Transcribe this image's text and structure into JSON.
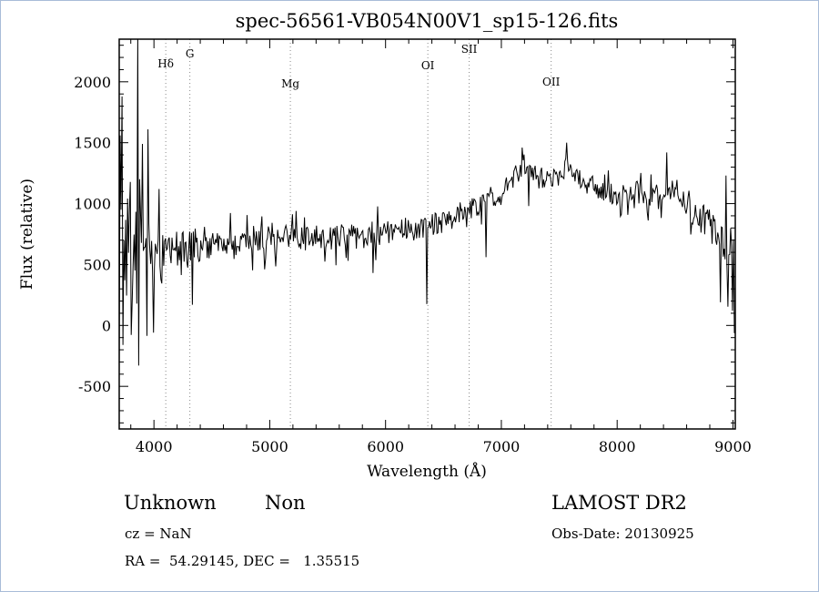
{
  "title": "spec-56561-VB054N00V1_sp15-126.fits",
  "chart_data": {
    "type": "line",
    "title": "spec-56561-VB054N00V1_sp15-126.fits",
    "xlabel": "Wavelength (Å)",
    "ylabel": "Flux (relative)",
    "xlim": [
      3700,
      9020
    ],
    "ylim": [
      -850,
      2350
    ],
    "x_ticks": [
      4000,
      5000,
      6000,
      7000,
      8000,
      9000
    ],
    "y_ticks": [
      -500,
      0,
      500,
      1000,
      1500,
      2000
    ],
    "x_minor_step": 200,
    "y_minor_step": 100,
    "grid": false,
    "legend": "none",
    "line_color": "#000000",
    "dotted_line_color": "#8a8a8a",
    "spectral_lines": [
      {
        "label": "Hδ",
        "wavelength": 4102,
        "label_y": 73
      },
      {
        "label": "G",
        "wavelength": 4310,
        "label_y": 62
      },
      {
        "label": "Mg",
        "wavelength": 5178,
        "label_y": 95
      },
      {
        "label": "OI",
        "wavelength": 6365,
        "label_y": 75
      },
      {
        "label": "SII",
        "wavelength": 6722,
        "label_y": 57
      },
      {
        "label": "OII",
        "wavelength": 7430,
        "label_y": 93
      }
    ],
    "continuum": [
      [
        3700,
        520
      ],
      [
        3720,
        560
      ],
      [
        3760,
        540
      ],
      [
        3800,
        560
      ],
      [
        3850,
        580
      ],
      [
        3900,
        600
      ],
      [
        3950,
        590
      ],
      [
        4000,
        580
      ],
      [
        4050,
        600
      ],
      [
        4100,
        610
      ],
      [
        4150,
        600
      ],
      [
        4200,
        615
      ],
      [
        4250,
        600
      ],
      [
        4300,
        605
      ],
      [
        4350,
        620
      ],
      [
        4400,
        630
      ],
      [
        4450,
        645
      ],
      [
        4500,
        655
      ],
      [
        4550,
        660
      ],
      [
        4600,
        670
      ],
      [
        4650,
        680
      ],
      [
        4700,
        690
      ],
      [
        4750,
        695
      ],
      [
        4800,
        700
      ],
      [
        4850,
        705
      ],
      [
        4900,
        715
      ],
      [
        4950,
        710
      ],
      [
        5000,
        705
      ],
      [
        5050,
        715
      ],
      [
        5100,
        720
      ],
      [
        5150,
        725
      ],
      [
        5200,
        730
      ],
      [
        5250,
        715
      ],
      [
        5300,
        705
      ],
      [
        5350,
        715
      ],
      [
        5400,
        720
      ],
      [
        5450,
        725
      ],
      [
        5500,
        730
      ],
      [
        5550,
        725
      ],
      [
        5600,
        720
      ],
      [
        5650,
        735
      ],
      [
        5700,
        740
      ],
      [
        5750,
        735
      ],
      [
        5800,
        730
      ],
      [
        5850,
        745
      ],
      [
        5900,
        750
      ],
      [
        5950,
        755
      ],
      [
        6000,
        760
      ],
      [
        6050,
        770
      ],
      [
        6100,
        780
      ],
      [
        6150,
        790
      ],
      [
        6200,
        800
      ],
      [
        6250,
        790
      ],
      [
        6300,
        780
      ],
      [
        6350,
        790
      ],
      [
        6400,
        820
      ],
      [
        6450,
        840
      ],
      [
        6500,
        855
      ],
      [
        6550,
        870
      ],
      [
        6600,
        900
      ],
      [
        6650,
        925
      ],
      [
        6700,
        950
      ],
      [
        6750,
        975
      ],
      [
        6800,
        1000
      ],
      [
        6850,
        1025
      ],
      [
        6900,
        1050
      ],
      [
        6950,
        1075
      ],
      [
        7000,
        1110
      ],
      [
        7050,
        1150
      ],
      [
        7100,
        1200
      ],
      [
        7150,
        1260
      ],
      [
        7200,
        1310
      ],
      [
        7250,
        1270
      ],
      [
        7300,
        1230
      ],
      [
        7350,
        1200
      ],
      [
        7400,
        1210
      ],
      [
        7450,
        1230
      ],
      [
        7500,
        1250
      ],
      [
        7550,
        1290
      ],
      [
        7600,
        1280
      ],
      [
        7650,
        1230
      ],
      [
        7700,
        1190
      ],
      [
        7750,
        1160
      ],
      [
        7800,
        1140
      ],
      [
        7850,
        1120
      ],
      [
        7900,
        1100
      ],
      [
        7950,
        1080
      ],
      [
        8000,
        1060
      ],
      [
        8050,
        1080
      ],
      [
        8100,
        1100
      ],
      [
        8150,
        1090
      ],
      [
        8200,
        1080
      ],
      [
        8250,
        1060
      ],
      [
        8300,
        1050
      ],
      [
        8350,
        1080
      ],
      [
        8400,
        1100
      ],
      [
        8450,
        1130
      ],
      [
        8500,
        1150
      ],
      [
        8550,
        1080
      ],
      [
        8600,
        1010
      ],
      [
        8650,
        960
      ],
      [
        8700,
        910
      ],
      [
        8750,
        860
      ],
      [
        8800,
        810
      ],
      [
        8850,
        760
      ],
      [
        8900,
        700
      ],
      [
        8930,
        600
      ],
      [
        8960,
        700
      ],
      [
        8990,
        750
      ],
      [
        9012,
        400
      ]
    ],
    "noise_segments": [
      [
        3700,
        3960,
        430
      ],
      [
        3960,
        4350,
        180
      ],
      [
        4350,
        5200,
        115
      ],
      [
        5200,
        6300,
        105
      ],
      [
        6300,
        7000,
        95
      ],
      [
        7000,
        8000,
        85
      ],
      [
        8000,
        8600,
        100
      ],
      [
        8600,
        8940,
        140
      ],
      [
        8940,
        9020,
        260
      ]
    ],
    "features": [
      [
        3706,
        1560
      ],
      [
        3713,
        -140
      ],
      [
        3719,
        950
      ],
      [
        3727,
        1880
      ],
      [
        3735,
        -160
      ],
      [
        3742,
        700
      ],
      [
        3858,
        2400
      ],
      [
        3866,
        -330
      ],
      [
        3875,
        1200
      ],
      [
        3903,
        1490
      ],
      [
        3947,
        1610
      ],
      [
        3992,
        -60
      ],
      [
        4047,
        1120
      ],
      [
        4332,
        170
      ],
      [
        5892,
        430
      ],
      [
        6358,
        175
      ],
      [
        6870,
        560
      ],
      [
        7178,
        1460
      ],
      [
        7232,
        980
      ],
      [
        7564,
        1500
      ],
      [
        8428,
        1420
      ],
      [
        8888,
        190
      ],
      [
        8941,
        1230
      ],
      [
        8993,
        120
      ]
    ],
    "noise_seed": 7,
    "sample_step": 8
  },
  "footer": {
    "class_label": "Unknown",
    "subclass_label": "Non",
    "survey": "LAMOST DR2",
    "cz": "cz = NaN",
    "obs_date": "Obs-Date: 20130925",
    "ra_dec": "RA =  54.29145, DEC =   1.35515"
  }
}
